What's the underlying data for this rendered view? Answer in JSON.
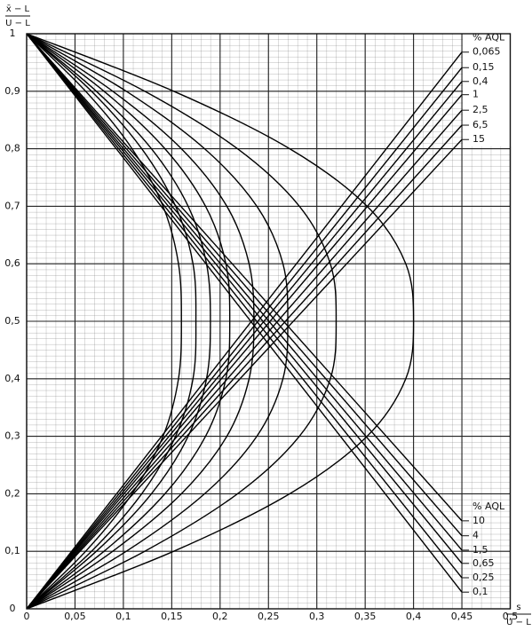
{
  "chart_data": {
    "type": "line",
    "ylabel": {
      "numerator": "x̄ − L",
      "denominator": "U − L"
    },
    "xlabel": {
      "numerator": "s",
      "denominator": "U − L"
    },
    "xlim": [
      0,
      0.5
    ],
    "ylim": [
      0,
      1
    ],
    "xticks": [
      0,
      {
        "value": 0.05,
        "label": "0,05"
      },
      {
        "value": 0.1,
        "label": "0,1"
      },
      {
        "value": 0.15,
        "label": "0,15"
      },
      {
        "value": 0.2,
        "label": "0,2"
      },
      {
        "value": 0.25,
        "label": "0,25"
      },
      {
        "value": 0.3,
        "label": "0,3"
      },
      {
        "value": 0.35,
        "label": "0,35"
      },
      {
        "value": 0.4,
        "label": "0,4"
      },
      {
        "value": 0.45,
        "label": "0,45"
      },
      {
        "value": 0.5,
        "label": "0,5"
      }
    ],
    "yticks": [
      0,
      {
        "value": 0.1,
        "label": "0,1"
      },
      {
        "value": 0.2,
        "label": "0,2"
      },
      {
        "value": 0.3,
        "label": "0,3"
      },
      {
        "value": 0.4,
        "label": "0,4"
      },
      {
        "value": 0.5,
        "label": "0,5"
      },
      {
        "value": 0.6,
        "label": "0,6"
      },
      {
        "value": 0.7,
        "label": "0,7"
      },
      {
        "value": 0.8,
        "label": "0,8"
      },
      {
        "value": 0.9,
        "label": "0,9"
      },
      1
    ],
    "grid": true,
    "color": "#000000",
    "upper_lines": {
      "title": "% AQL",
      "series": [
        {
          "name": "0,065",
          "x": [
            0,
            0.45
          ],
          "values": [
            0,
            0.968
          ]
        },
        {
          "name": "0,15",
          "x": [
            0,
            0.45
          ],
          "values": [
            0,
            0.941
          ]
        },
        {
          "name": "0,4",
          "x": [
            0,
            0.45
          ],
          "values": [
            0,
            0.917
          ]
        },
        {
          "name": "1",
          "x": [
            0,
            0.45
          ],
          "values": [
            0,
            0.894
          ]
        },
        {
          "name": "2,5",
          "x": [
            0,
            0.45
          ],
          "values": [
            0,
            0.867
          ]
        },
        {
          "name": "6,5",
          "x": [
            0,
            0.45
          ],
          "values": [
            0,
            0.841
          ]
        },
        {
          "name": "15",
          "x": [
            0,
            0.45
          ],
          "values": [
            0,
            0.816
          ]
        }
      ]
    },
    "lower_lines": {
      "title": "% AQL",
      "series": [
        {
          "name": "10",
          "x": [
            0,
            0.45
          ],
          "values": [
            1,
            0.153
          ]
        },
        {
          "name": "4",
          "x": [
            0,
            0.45
          ],
          "values": [
            1,
            0.127
          ]
        },
        {
          "name": "1,5",
          "x": [
            0,
            0.45
          ],
          "values": [
            1,
            0.102
          ]
        },
        {
          "name": "0,65",
          "x": [
            0,
            0.45
          ],
          "values": [
            1,
            0.079
          ]
        },
        {
          "name": "0,25",
          "x": [
            0,
            0.45
          ],
          "values": [
            1,
            0.054
          ]
        },
        {
          "name": "0,1",
          "x": [
            0,
            0.45
          ],
          "values": [
            1,
            0.029
          ]
        }
      ]
    },
    "curves": [
      {
        "x": [
          0,
          0.061,
          0.109,
          0.141,
          0.157,
          0.16,
          0.157,
          0.141,
          0.109,
          0.061,
          0
        ],
        "values": [
          1,
          0.9,
          0.8,
          0.7,
          0.6,
          0.5,
          0.4,
          0.3,
          0.2,
          0.1,
          0
        ]
      },
      {
        "x": [
          0,
          0.067,
          0.119,
          0.154,
          0.172,
          0.175,
          0.172,
          0.154,
          0.119,
          0.067,
          0
        ],
        "values": [
          1,
          0.9,
          0.8,
          0.7,
          0.6,
          0.5,
          0.4,
          0.3,
          0.2,
          0.1,
          0
        ]
      },
      {
        "x": [
          0,
          0.072,
          0.129,
          0.167,
          0.186,
          0.19,
          0.186,
          0.167,
          0.129,
          0.072,
          0
        ],
        "values": [
          1,
          0.9,
          0.8,
          0.7,
          0.6,
          0.5,
          0.4,
          0.3,
          0.2,
          0.1,
          0
        ]
      },
      {
        "x": [
          0,
          0.08,
          0.143,
          0.185,
          0.206,
          0.21,
          0.206,
          0.185,
          0.143,
          0.08,
          0
        ],
        "values": [
          1,
          0.9,
          0.8,
          0.7,
          0.6,
          0.5,
          0.4,
          0.3,
          0.2,
          0.1,
          0
        ]
      },
      {
        "x": [
          0,
          0.089,
          0.16,
          0.207,
          0.23,
          0.235,
          0.23,
          0.207,
          0.16,
          0.089,
          0
        ],
        "values": [
          1,
          0.9,
          0.8,
          0.7,
          0.6,
          0.5,
          0.4,
          0.3,
          0.2,
          0.1,
          0
        ]
      },
      {
        "x": [
          0,
          0.103,
          0.184,
          0.238,
          0.265,
          0.27,
          0.265,
          0.238,
          0.184,
          0.103,
          0
        ],
        "values": [
          1,
          0.9,
          0.8,
          0.7,
          0.6,
          0.5,
          0.4,
          0.3,
          0.2,
          0.1,
          0
        ]
      },
      {
        "x": [
          0,
          0.122,
          0.218,
          0.282,
          0.314,
          0.32,
          0.314,
          0.282,
          0.218,
          0.122,
          0
        ],
        "values": [
          1,
          0.9,
          0.8,
          0.7,
          0.6,
          0.5,
          0.4,
          0.3,
          0.2,
          0.1,
          0
        ]
      },
      {
        "x": [
          0,
          0.152,
          0.272,
          0.352,
          0.392,
          0.4,
          0.392,
          0.352,
          0.272,
          0.152,
          0
        ],
        "values": [
          1,
          0.9,
          0.8,
          0.7,
          0.6,
          0.5,
          0.4,
          0.3,
          0.2,
          0.1,
          0
        ]
      }
    ]
  }
}
